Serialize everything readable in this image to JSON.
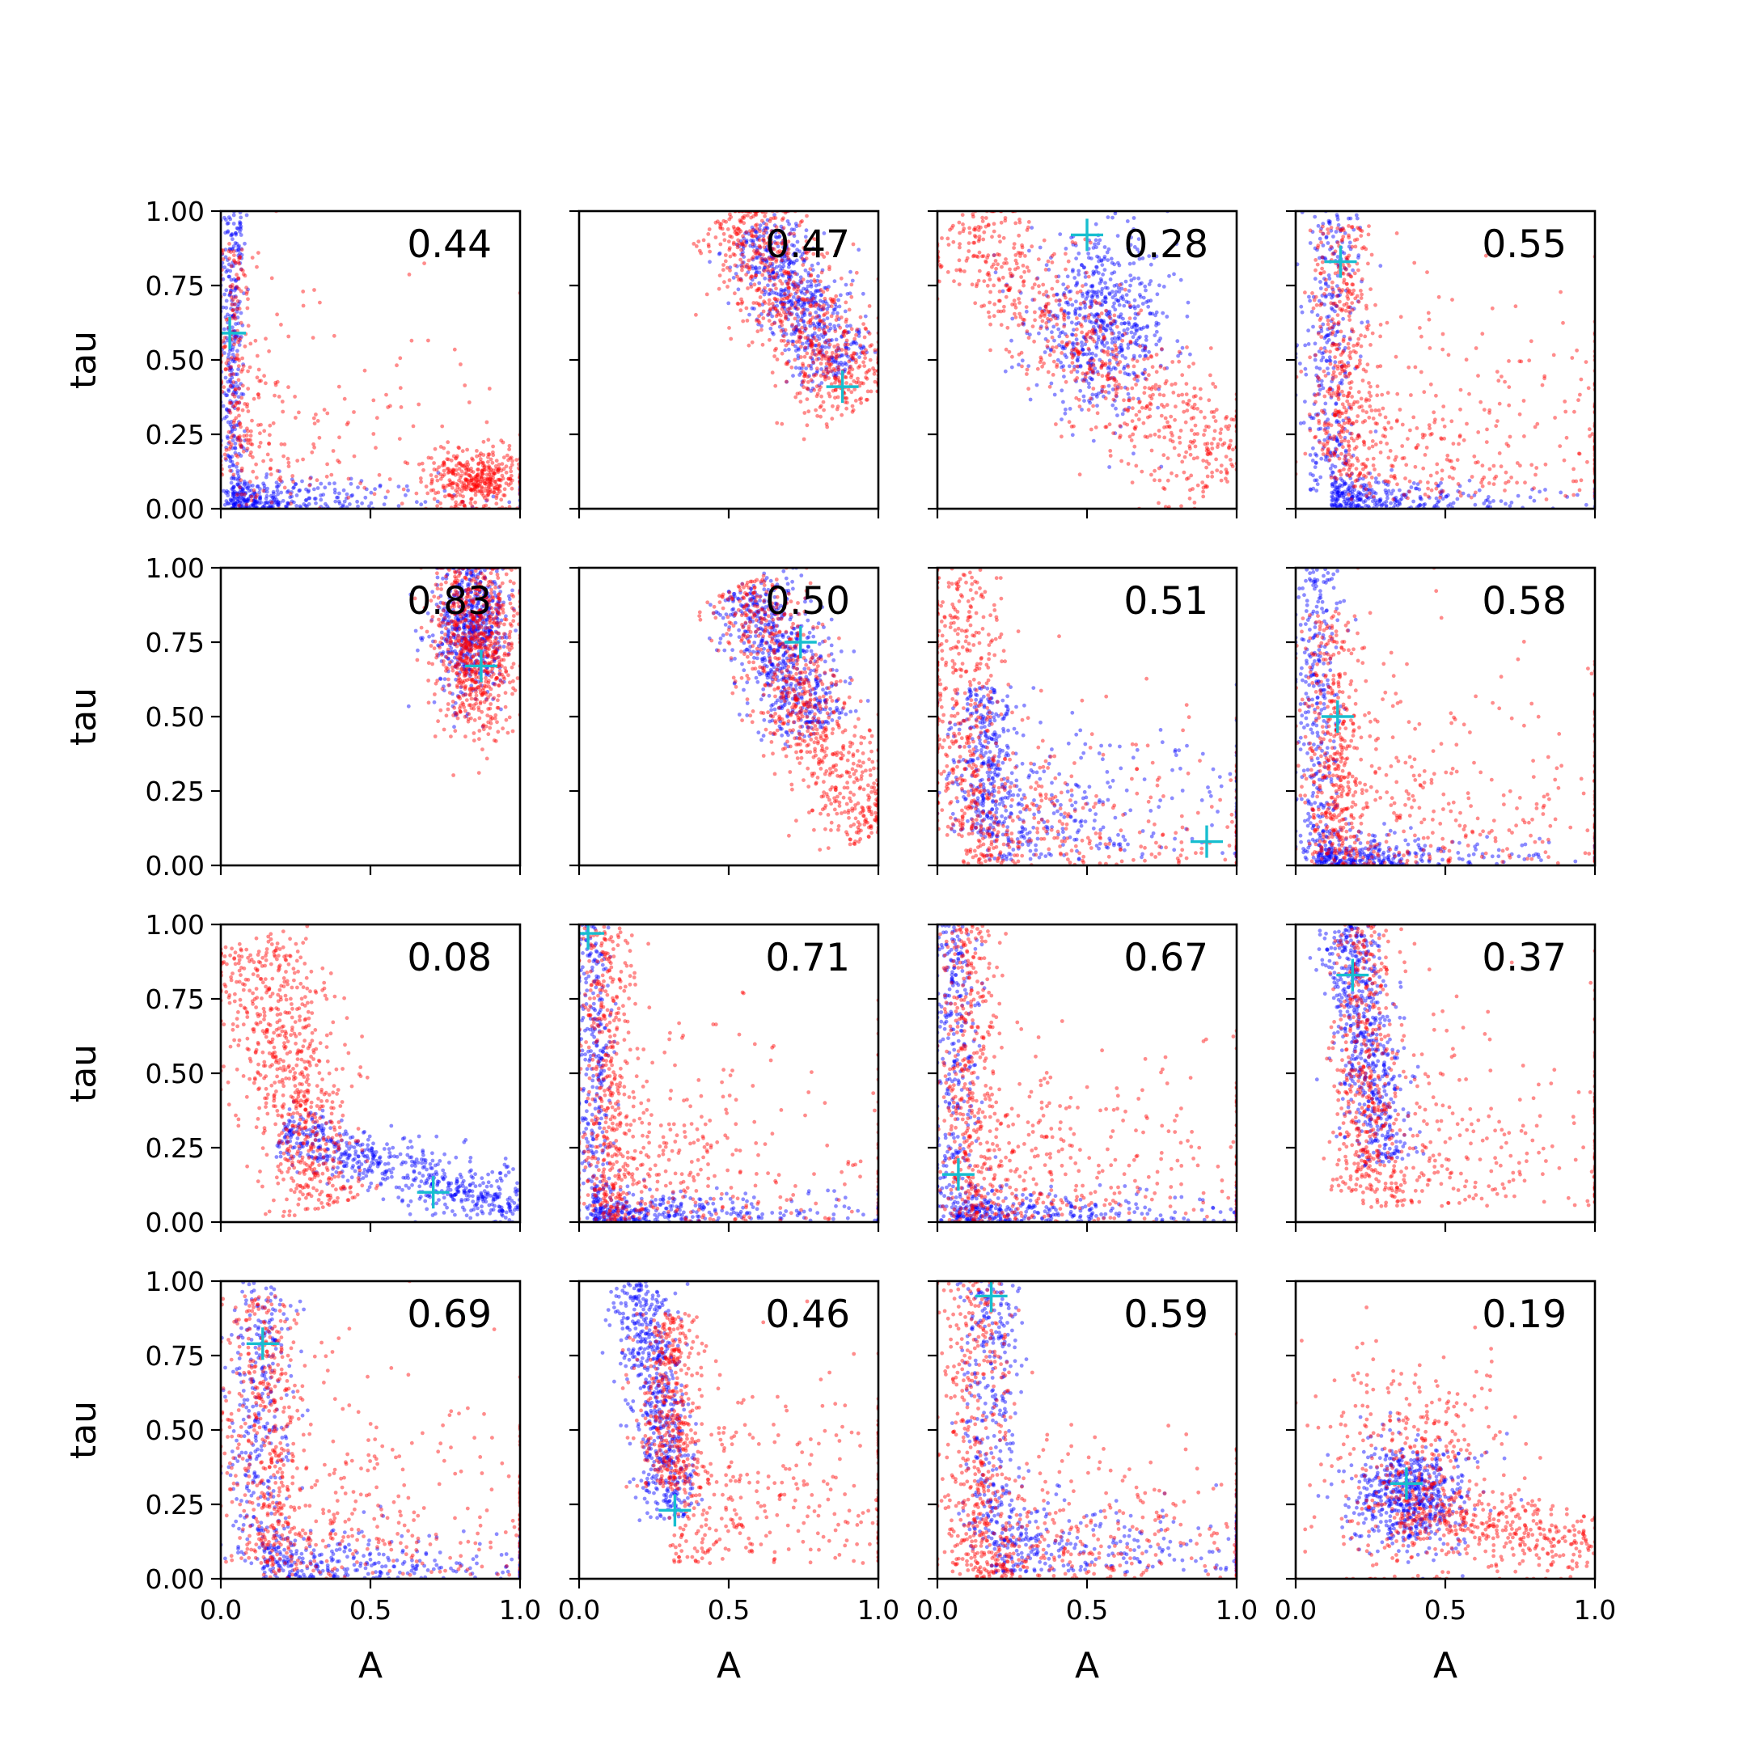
{
  "chart_data": {
    "type": "scatter",
    "layout": {
      "rows": 4,
      "cols": 4
    },
    "xlabel": "A",
    "ylabel": "tau",
    "xlim": [
      0,
      1
    ],
    "ylim": [
      0,
      1
    ],
    "x_ticks": [
      "0.0",
      "0.5",
      "1.0"
    ],
    "y_ticks": [
      "0.00",
      "0.25",
      "0.50",
      "0.75",
      "1.00"
    ],
    "colors": {
      "series_a": "#0000ff",
      "series_b": "#ff0000",
      "marker": "#17becf"
    },
    "panels": [
      {
        "label": "0.44",
        "marker": [
          0.03,
          0.59
        ],
        "a": {
          "type": "L",
          "corner": [
            0.04,
            0.03
          ],
          "v": [
            0.02,
            0.0,
            1.0
          ],
          "h": [
            0.25,
            0.0,
            0.05
          ]
        },
        "b": {
          "type": "mix",
          "parts": [
            {
              "type": "L",
              "corner": [
                0.05,
                0.05
              ],
              "v": [
                0.03,
                0.1,
                0.9
              ],
              "h": [
                0.3,
                0.0,
                0.35
              ]
            },
            {
              "type": "blob",
              "c": [
                0.85,
                0.1
              ],
              "s": [
                0.08,
                0.05
              ]
            }
          ]
        }
      },
      {
        "label": "0.47",
        "marker": [
          0.88,
          0.41
        ],
        "a": {
          "type": "band",
          "p0": [
            0.58,
            0.95
          ],
          "p1": [
            0.88,
            0.45
          ],
          "w": 0.07
        },
        "b": {
          "type": "band",
          "p0": [
            0.5,
            1.0
          ],
          "p1": [
            0.95,
            0.35
          ],
          "w": 0.09
        }
      },
      {
        "label": "0.28",
        "marker": [
          0.5,
          0.92
        ],
        "a": {
          "type": "blob",
          "c": [
            0.55,
            0.62
          ],
          "s": [
            0.12,
            0.14
          ]
        },
        "b": {
          "type": "band",
          "p0": [
            0.05,
            0.95
          ],
          "p1": [
            0.98,
            0.1
          ],
          "w": 0.1
        }
      },
      {
        "label": "0.55",
        "marker": [
          0.15,
          0.83
        ],
        "a": {
          "type": "L",
          "corner": [
            0.12,
            0.05
          ],
          "v": [
            0.05,
            0.05,
            1.0
          ],
          "h": [
            0.2,
            0.0,
            0.05
          ]
        },
        "b": {
          "type": "L",
          "corner": [
            0.15,
            0.1
          ],
          "v": [
            0.05,
            0.1,
            0.95
          ],
          "h": [
            0.45,
            0.03,
            0.28
          ]
        }
      },
      {
        "label": "0.83",
        "marker": [
          0.87,
          0.67
        ],
        "a": {
          "type": "blob",
          "c": [
            0.84,
            0.8
          ],
          "s": [
            0.06,
            0.12
          ]
        },
        "b": {
          "type": "blob",
          "c": [
            0.85,
            0.75
          ],
          "s": [
            0.07,
            0.15
          ]
        }
      },
      {
        "label": "0.50",
        "marker": [
          0.74,
          0.75
        ],
        "a": {
          "type": "band",
          "p0": [
            0.55,
            0.95
          ],
          "p1": [
            0.8,
            0.45
          ],
          "w": 0.07
        },
        "b": {
          "type": "band",
          "p0": [
            0.55,
            0.95
          ],
          "p1": [
            0.98,
            0.1
          ],
          "w": 0.08
        }
      },
      {
        "label": "0.51",
        "marker": [
          0.9,
          0.08
        ],
        "a": {
          "type": "L",
          "corner": [
            0.15,
            0.1
          ],
          "v": [
            0.06,
            0.1,
            0.6
          ],
          "h": [
            0.4,
            0.02,
            0.2
          ]
        },
        "b": {
          "type": "L",
          "corner": [
            0.08,
            0.08
          ],
          "v": [
            0.07,
            0.1,
            1.0
          ],
          "h": [
            0.45,
            0.0,
            0.2
          ]
        }
      },
      {
        "label": "0.58",
        "marker": [
          0.14,
          0.5
        ],
        "a": {
          "type": "L",
          "corner": [
            0.07,
            0.03
          ],
          "v": [
            0.04,
            0.0,
            1.0
          ],
          "h": [
            0.25,
            0.0,
            0.05
          ]
        },
        "b": {
          "type": "L",
          "corner": [
            0.12,
            0.05
          ],
          "v": [
            0.05,
            0.0,
            0.85
          ],
          "h": [
            0.45,
            0.0,
            0.3
          ]
        }
      },
      {
        "label": "0.08",
        "marker": [
          0.71,
          0.1
        ],
        "a": {
          "type": "band",
          "p0": [
            0.2,
            0.3
          ],
          "p1": [
            1.0,
            0.05
          ],
          "w": 0.05
        },
        "b": {
          "type": "band",
          "p0": [
            0.1,
            0.95
          ],
          "p1": [
            0.35,
            0.05
          ],
          "w": 0.09
        }
      },
      {
        "label": "0.71",
        "marker": [
          0.03,
          0.97
        ],
        "a": {
          "type": "L",
          "corner": [
            0.05,
            0.03
          ],
          "v": [
            0.03,
            0.0,
            1.0
          ],
          "h": [
            0.3,
            0.0,
            0.05
          ]
        },
        "b": {
          "type": "L",
          "corner": [
            0.08,
            0.08
          ],
          "v": [
            0.05,
            0.0,
            1.0
          ],
          "h": [
            0.35,
            0.0,
            0.3
          ]
        }
      },
      {
        "label": "0.67",
        "marker": [
          0.07,
          0.16
        ],
        "a": {
          "type": "L",
          "corner": [
            0.06,
            0.03
          ],
          "v": [
            0.04,
            0.0,
            1.0
          ],
          "h": [
            0.3,
            0.0,
            0.05
          ]
        },
        "b": {
          "type": "L",
          "corner": [
            0.1,
            0.08
          ],
          "v": [
            0.05,
            0.0,
            1.0
          ],
          "h": [
            0.4,
            0.0,
            0.28
          ]
        }
      },
      {
        "label": "0.37",
        "marker": [
          0.19,
          0.83
        ],
        "a": {
          "type": "band",
          "p0": [
            0.16,
            1.0
          ],
          "p1": [
            0.3,
            0.2
          ],
          "w": 0.05
        },
        "b": {
          "type": "L",
          "corner": [
            0.22,
            0.18
          ],
          "v": [
            0.05,
            0.1,
            1.0
          ],
          "h": [
            0.45,
            0.05,
            0.32
          ]
        }
      },
      {
        "label": "0.69",
        "marker": [
          0.14,
          0.79
        ],
        "a": {
          "type": "L",
          "corner": [
            0.14,
            0.05
          ],
          "v": [
            0.06,
            0.05,
            1.0
          ],
          "h": [
            0.35,
            0.0,
            0.08
          ]
        },
        "b": {
          "type": "L",
          "corner": [
            0.14,
            0.1
          ],
          "v": [
            0.07,
            0.05,
            0.95
          ],
          "h": [
            0.45,
            0.0,
            0.3
          ]
        }
      },
      {
        "label": "0.46",
        "marker": [
          0.32,
          0.23
        ],
        "a": {
          "type": "band",
          "p0": [
            0.2,
            1.0
          ],
          "p1": [
            0.32,
            0.2
          ],
          "w": 0.05
        },
        "b": {
          "type": "L",
          "corner": [
            0.3,
            0.2
          ],
          "v": [
            0.05,
            0.3,
            0.9
          ],
          "h": [
            0.4,
            0.05,
            0.3
          ]
        }
      },
      {
        "label": "0.59",
        "marker": [
          0.18,
          0.95
        ],
        "a": {
          "type": "L",
          "corner": [
            0.18,
            0.08
          ],
          "v": [
            0.05,
            0.1,
            1.0
          ],
          "h": [
            0.45,
            0.02,
            0.12
          ]
        },
        "b": {
          "type": "L",
          "corner": [
            0.12,
            0.08
          ],
          "v": [
            0.06,
            0.0,
            1.0
          ],
          "h": [
            0.45,
            0.0,
            0.2
          ]
        }
      },
      {
        "label": "0.19",
        "marker": [
          0.37,
          0.32
        ],
        "a": {
          "type": "blob",
          "c": [
            0.38,
            0.28
          ],
          "s": [
            0.1,
            0.09
          ]
        },
        "b": {
          "type": "mix",
          "parts": [
            {
              "type": "blob",
              "c": [
                0.4,
                0.35
              ],
              "s": [
                0.15,
                0.2
              ]
            },
            {
              "type": "band",
              "p0": [
                0.35,
                0.25
              ],
              "p1": [
                1.0,
                0.1
              ],
              "w": 0.06
            }
          ]
        }
      }
    ]
  }
}
